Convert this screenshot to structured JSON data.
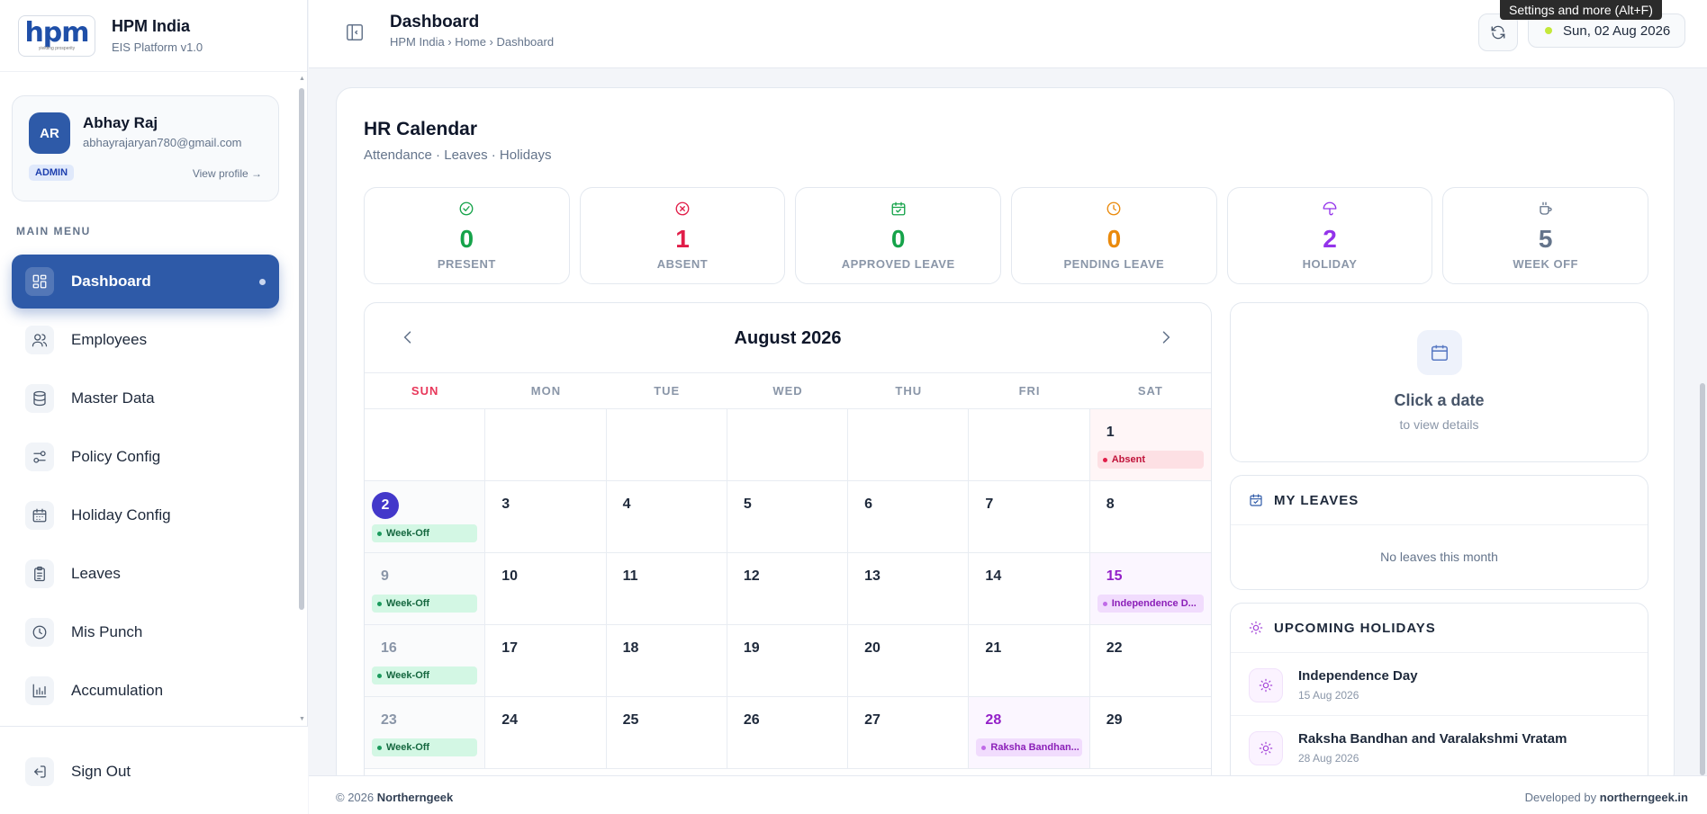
{
  "brand": {
    "title": "HPM India",
    "subtitle": "EIS Platform v1.0",
    "logo_text": "hpm",
    "logo_tagline": "yielding prosperity"
  },
  "profile": {
    "initials": "AR",
    "name": "Abhay Raj",
    "email": "abhayrajaryan780@gmail.com",
    "role": "ADMIN",
    "view_profile": "View profile →"
  },
  "menu_label": "MAIN MENU",
  "menu": [
    {
      "label": "Dashboard",
      "icon": "grid-icon",
      "active": true
    },
    {
      "label": "Employees",
      "icon": "users-icon"
    },
    {
      "label": "Master Data",
      "icon": "database-icon"
    },
    {
      "label": "Policy Config",
      "icon": "sliders-icon"
    },
    {
      "label": "Holiday Config",
      "icon": "calendar-icon"
    },
    {
      "label": "Leaves",
      "icon": "clipboard-icon"
    },
    {
      "label": "Mis Punch",
      "icon": "clock-icon"
    },
    {
      "label": "Accumulation",
      "icon": "bar-chart-icon"
    }
  ],
  "sign_out": "Sign Out",
  "header": {
    "title": "Dashboard",
    "breadcrumb": "HPM India › Home › Dashboard",
    "date": "Sun, 02 Aug 2026",
    "tooltip": "Settings and more (Alt+F)"
  },
  "calendar": {
    "title": "HR Calendar",
    "subtitle": "Attendance · Leaves · Holidays",
    "stats": [
      {
        "value": "0",
        "label": "PRESENT",
        "color": "#16a34a",
        "icon": "check-circle-icon"
      },
      {
        "value": "1",
        "label": "ABSENT",
        "color": "#e11d48",
        "icon": "x-circle-icon"
      },
      {
        "value": "0",
        "label": "APPROVED LEAVE",
        "color": "#16a34a",
        "icon": "calendar-check-icon"
      },
      {
        "value": "0",
        "label": "PENDING LEAVE",
        "color": "#ea8a0c",
        "icon": "clock-icon"
      },
      {
        "value": "2",
        "label": "HOLIDAY",
        "color": "#9333ea",
        "icon": "umbrella-icon"
      },
      {
        "value": "5",
        "label": "WEEK OFF",
        "color": "#64748b",
        "icon": "coffee-icon"
      }
    ],
    "month": "August 2026",
    "weekdays": [
      "SUN",
      "MON",
      "TUE",
      "WED",
      "THU",
      "FRI",
      "SAT"
    ],
    "weeks": [
      [
        null,
        null,
        null,
        null,
        null,
        null,
        {
          "d": "1",
          "tag": "Absent",
          "type": "absent"
        }
      ],
      [
        {
          "d": "2",
          "tag": "Week-Off",
          "type": "weekoff",
          "today": true
        },
        {
          "d": "3"
        },
        {
          "d": "4"
        },
        {
          "d": "5"
        },
        {
          "d": "6"
        },
        {
          "d": "7"
        },
        {
          "d": "8"
        }
      ],
      [
        {
          "d": "9",
          "tag": "Week-Off",
          "type": "weekoff"
        },
        {
          "d": "10"
        },
        {
          "d": "11"
        },
        {
          "d": "12"
        },
        {
          "d": "13"
        },
        {
          "d": "14"
        },
        {
          "d": "15",
          "tag": "Independence D...",
          "type": "holiday"
        }
      ],
      [
        {
          "d": "16",
          "tag": "Week-Off",
          "type": "weekoff"
        },
        {
          "d": "17"
        },
        {
          "d": "18"
        },
        {
          "d": "19"
        },
        {
          "d": "20"
        },
        {
          "d": "21"
        },
        {
          "d": "22"
        }
      ],
      [
        {
          "d": "23",
          "tag": "Week-Off",
          "type": "weekoff"
        },
        {
          "d": "24"
        },
        {
          "d": "25"
        },
        {
          "d": "26"
        },
        {
          "d": "27"
        },
        {
          "d": "28",
          "tag": "Raksha Bandhan...",
          "type": "holiday"
        },
        {
          "d": "29"
        }
      ]
    ]
  },
  "detail": {
    "title": "Click a date",
    "subtitle": "to view details"
  },
  "my_leaves": {
    "title": "MY LEAVES",
    "empty": "No leaves this month"
  },
  "upcoming": {
    "title": "UPCOMING HOLIDAYS",
    "items": [
      {
        "name": "Independence Day",
        "date": "15 Aug 2026"
      },
      {
        "name": "Raksha Bandhan and Varalakshmi Vratam",
        "date": "28 Aug 2026"
      }
    ]
  },
  "footer": {
    "copyright": "© 2026 ",
    "company": "Northerngeek",
    "dev_prefix": "Developed by ",
    "dev_site": "northerngeek.in"
  }
}
